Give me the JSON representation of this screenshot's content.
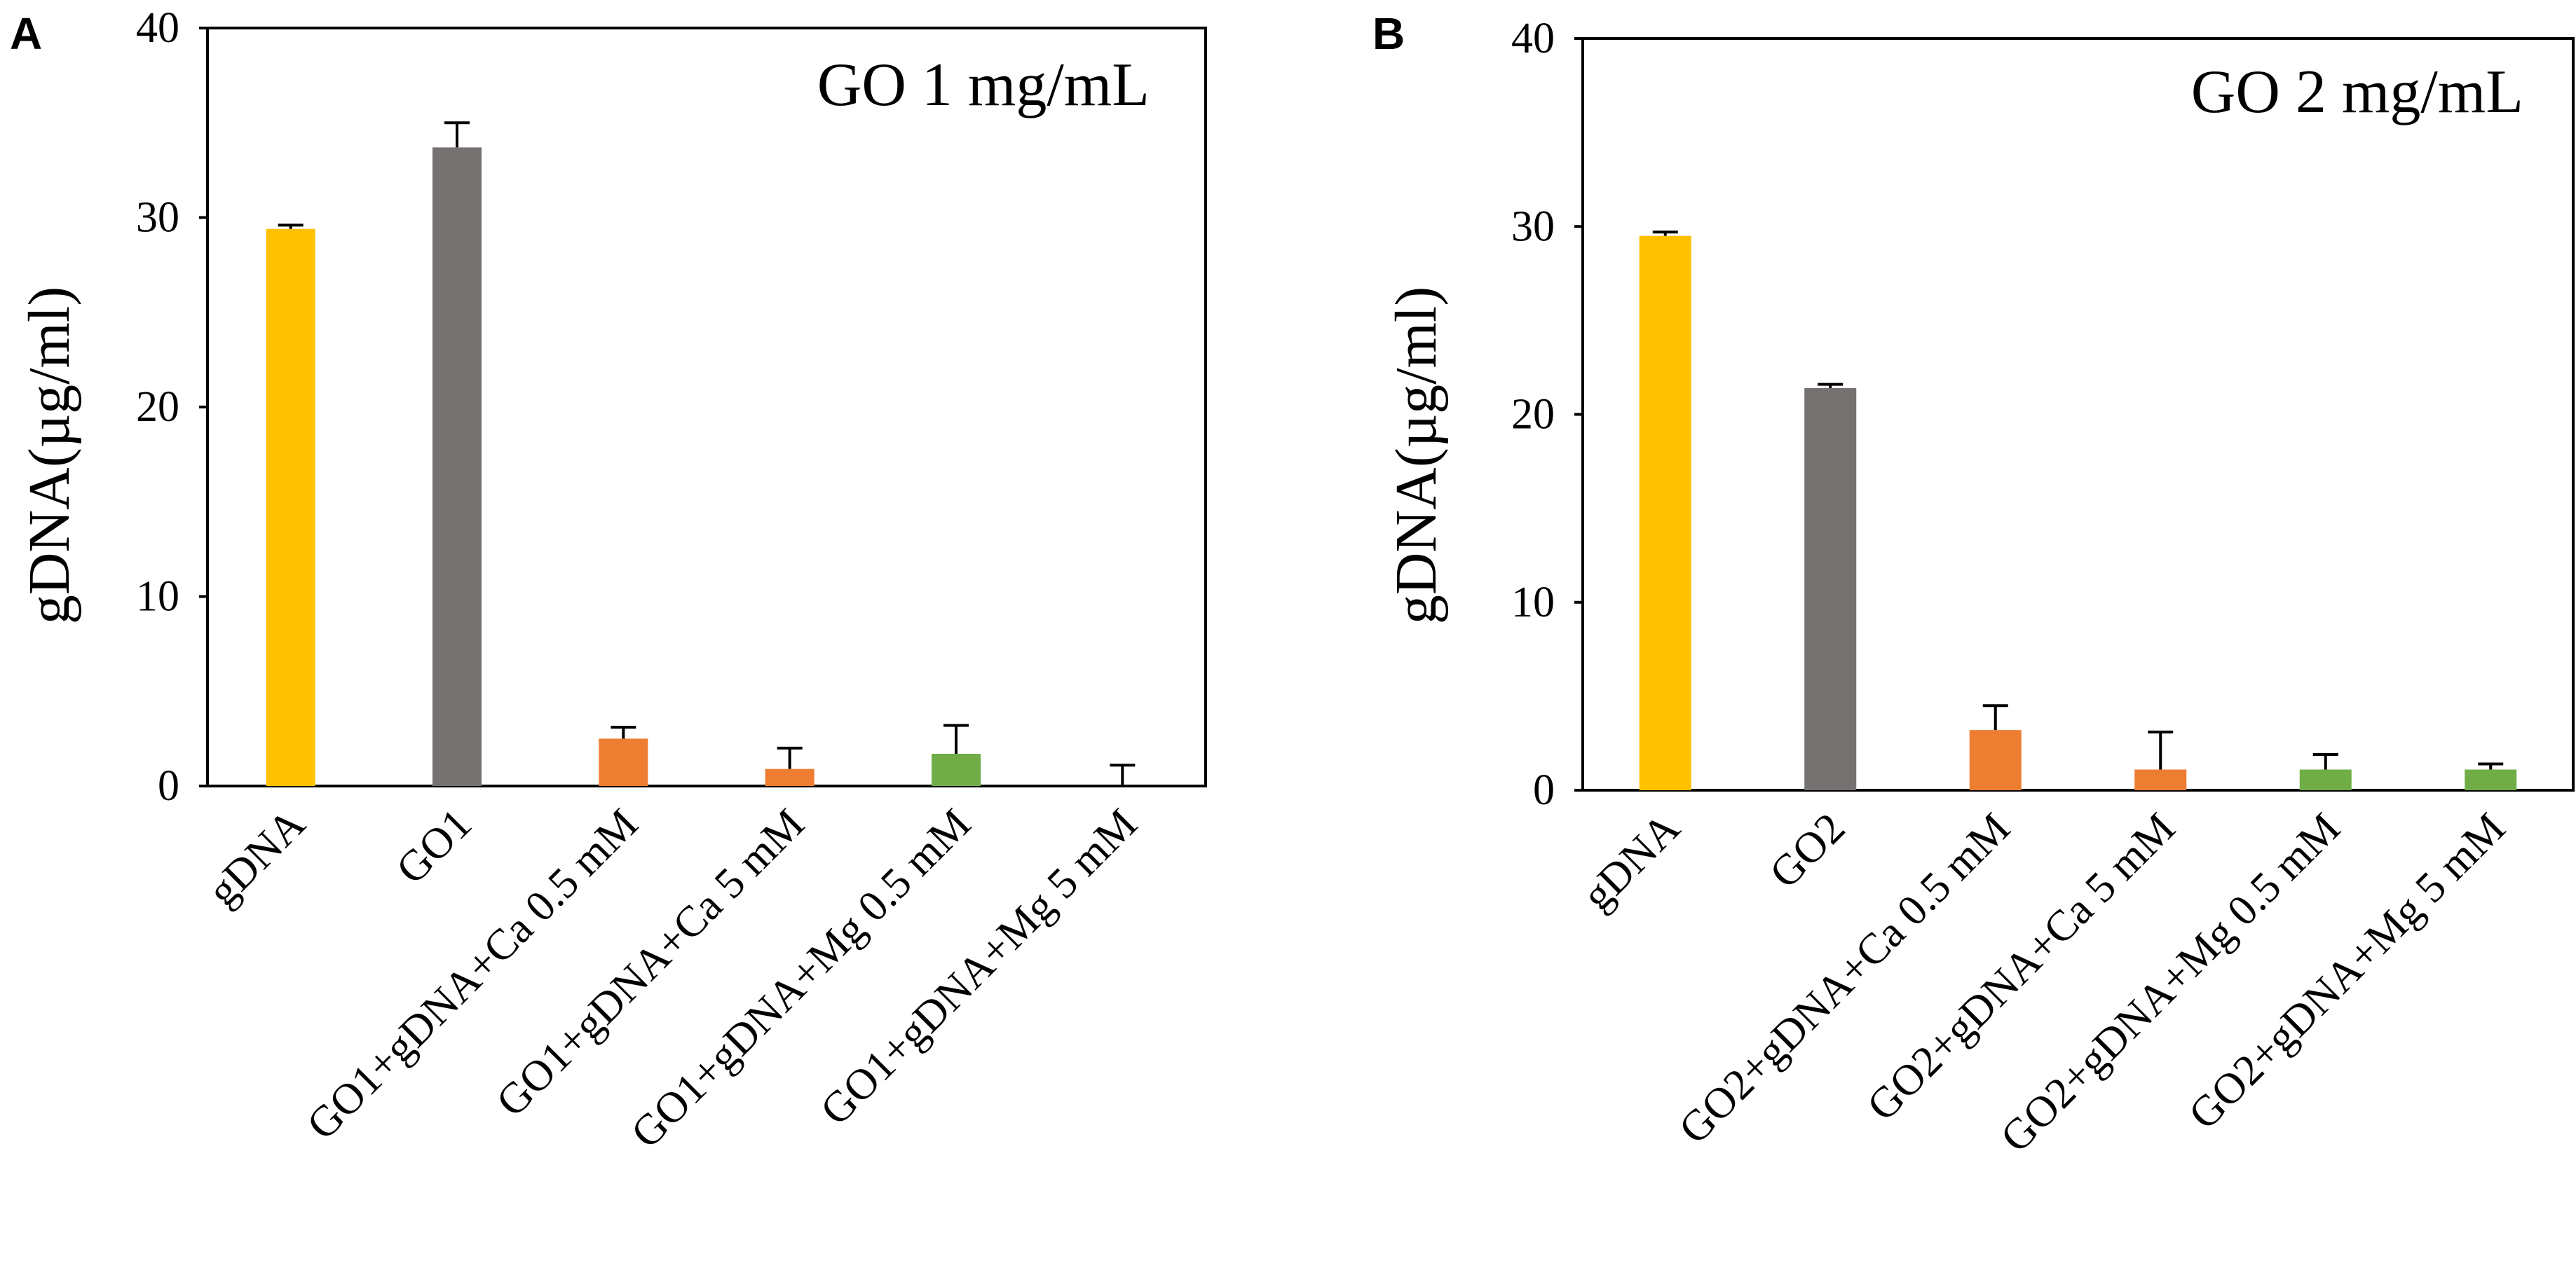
{
  "chart_data": [
    {
      "panel": "A",
      "type": "bar",
      "title": "GO 1 mg/mL",
      "xlabel": "",
      "ylabel": "gDNA(µg/ml)",
      "ylim": [
        0,
        40
      ],
      "yticks": [
        0,
        10,
        20,
        30,
        40
      ],
      "grid": false,
      "categories": [
        "gDNA",
        "GO1",
        "GO1+gDNA+Ca 0.5 mM",
        "GO1+gDNA+Ca 5 mM",
        "GO1+gDNA+Mg 0.5 mM",
        "GO1+gDNA+Mg 5 mM"
      ],
      "values": [
        29.4,
        33.7,
        2.5,
        0.9,
        1.7,
        0.0
      ],
      "errors": [
        0.2,
        1.3,
        0.6,
        1.1,
        1.5,
        1.1
      ],
      "colors": [
        "#FFC000",
        "#767171",
        "#ED7D31",
        "#ED7D31",
        "#70AD47",
        "#70AD47"
      ]
    },
    {
      "panel": "B",
      "type": "bar",
      "title": "GO 2 mg/mL",
      "xlabel": "",
      "ylabel": "gDNA(µg/ml)",
      "ylim": [
        0,
        40
      ],
      "yticks": [
        0,
        10,
        20,
        30,
        40
      ],
      "grid": false,
      "categories": [
        "gDNA",
        "GO2",
        "GO2+gDNA+Ca 0.5 mM",
        "GO2+gDNA+Ca 5 mM",
        "GO2+gDNA+Mg 0.5 mM",
        "GO2+gDNA+Mg 5 mM"
      ],
      "values": [
        29.5,
        21.4,
        3.2,
        1.1,
        1.1,
        1.1
      ],
      "errors": [
        0.2,
        0.2,
        1.3,
        2.0,
        0.8,
        0.3
      ],
      "colors": [
        "#FFC000",
        "#767171",
        "#ED7D31",
        "#ED7D31",
        "#70AD47",
        "#70AD47"
      ]
    }
  ]
}
